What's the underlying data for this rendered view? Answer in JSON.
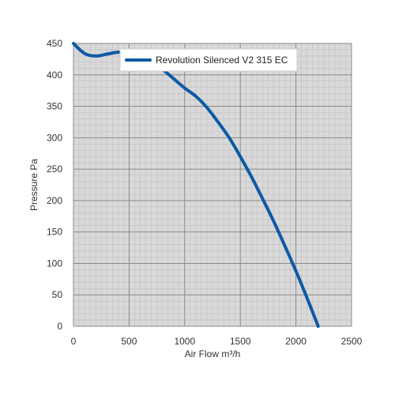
{
  "chart_data": {
    "type": "line",
    "xlabel": "Air Flow m³/h",
    "ylabel": "Pressure Pa",
    "xlim": [
      0,
      2500
    ],
    "ylim": [
      0,
      450
    ],
    "xticks": [
      0,
      500,
      1000,
      1500,
      2000,
      2500
    ],
    "yticks": [
      0,
      50,
      100,
      150,
      200,
      250,
      300,
      350,
      400,
      450
    ],
    "grid": true,
    "legend_position": "top",
    "series": [
      {
        "name": "Revolution Silenced V2 315 EC",
        "color": "#0c5aa6",
        "x": [
          0,
          100,
          200,
          300,
          400,
          500,
          600,
          700,
          800,
          900,
          1000,
          1100,
          1200,
          1300,
          1400,
          1500,
          1600,
          1700,
          1800,
          1900,
          2000,
          2100,
          2200
        ],
        "y": [
          450,
          434,
          430,
          433,
          436,
          435,
          430,
          421,
          409,
          394,
          379,
          366,
          348,
          325,
          300,
          270,
          238,
          203,
          167,
          128,
          88,
          45,
          0
        ]
      }
    ],
    "colors": {
      "plot_background": "#d9d9d9",
      "minor_grid": "#c0c0c0",
      "major_grid": "#8a8a8a"
    }
  }
}
